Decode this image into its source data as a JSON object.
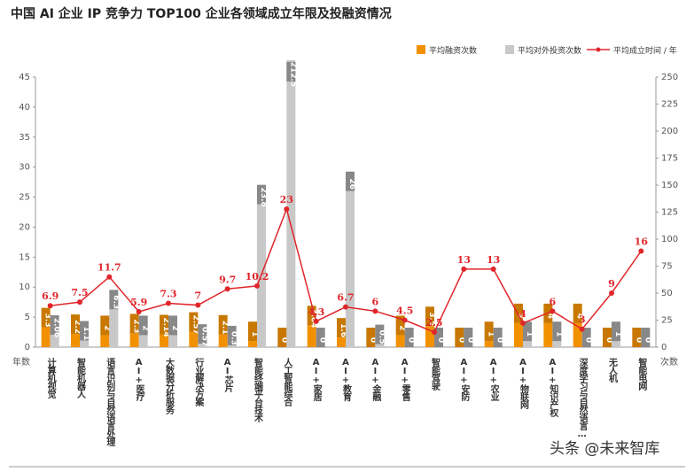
{
  "chart_data": {
    "type": "bar_line",
    "title": "中国 AI 企业 IP 竞争力 TOP100 企业各领域成立年限及投融资情况",
    "y_axis_label": "年数",
    "y2_axis_label": "次数",
    "categories": [
      "计算机视觉",
      "智能机器人",
      "语言识别与自然语言处理",
      "AI+医疗",
      "大数据分析服务",
      "行业解决方案",
      "AI芯片",
      "智能终端平台技术",
      "人工智能综合",
      "AI+家居",
      "AI+教育",
      "AI+金融",
      "AI+零售",
      "智能驾驶",
      "AI+安防",
      "AI+农业",
      "AI+物联网",
      "AI+知识产权",
      "深度学习与自然语言…",
      "无人机",
      "智能电网"
    ],
    "series": [
      {
        "name": "平均融资次数",
        "type": "bar",
        "color": "#f29100",
        "values": [
          3.3,
          2.2,
          2,
          2.3,
          2.14,
          2.57,
          2.1,
          1,
          0,
          3.64,
          1.6,
          0,
          2,
          3.5,
          0,
          1,
          4,
          4,
          4,
          0,
          0
        ]
      },
      {
        "name": "平均对外投资次数",
        "type": "bar",
        "color": "#c8c8c8",
        "values": [
          2.06,
          1.1,
          6.3,
          2,
          2,
          0.57,
          0.3,
          23.8,
          212.5,
          0,
          26,
          0.5,
          0,
          0,
          0,
          0,
          1,
          1,
          0,
          1,
          0
        ]
      },
      {
        "name": "平均成立时间 / 年",
        "type": "line",
        "color": "#e0262b",
        "values": [
          6.9,
          7.5,
          11.7,
          5.9,
          7.3,
          7,
          9.7,
          10.2,
          23,
          4.3,
          6.7,
          6,
          4.5,
          2.5,
          13,
          13,
          4,
          6,
          3,
          9,
          16
        ]
      }
    ],
    "ylim": [
      0,
      45
    ],
    "yticks": [
      0,
      5,
      10,
      15,
      20,
      25,
      30,
      35,
      40,
      45
    ],
    "y2lim": [
      0,
      250
    ],
    "y2ticks": [
      0,
      25,
      50,
      75,
      100,
      125,
      150,
      175,
      200,
      225,
      250
    ],
    "watermark": "头条 @未来智库"
  }
}
